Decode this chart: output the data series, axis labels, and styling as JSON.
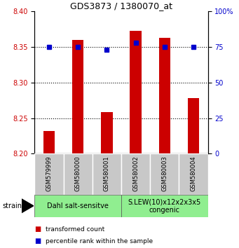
{
  "title": "GDS3873 / 1380070_at",
  "samples": [
    "GSM579999",
    "GSM580000",
    "GSM580001",
    "GSM580002",
    "GSM580003",
    "GSM580004"
  ],
  "red_values": [
    8.232,
    8.36,
    8.258,
    8.372,
    8.363,
    8.278
  ],
  "blue_values": [
    75,
    75,
    73,
    78,
    75,
    75
  ],
  "ylim_left": [
    8.2,
    8.4
  ],
  "ylim_right": [
    0,
    100
  ],
  "yticks_left": [
    8.2,
    8.25,
    8.3,
    8.35,
    8.4
  ],
  "yticks_right": [
    0,
    25,
    50,
    75,
    100
  ],
  "group1_label": "Dahl salt-sensitve",
  "group2_label": "S.LEW(10)x12x2x3x5\ncongenic",
  "group1_color": "#90EE90",
  "group2_color": "#90EE90",
  "bar_color": "#CC0000",
  "dot_color": "#0000CC",
  "tick_label_area_bg": "#C8C8C8",
  "ylabel_left_color": "#CC0000",
  "ylabel_right_color": "#0000CC",
  "legend_red_label": "transformed count",
  "legend_blue_label": "percentile rank within the sample",
  "strain_label": "strain",
  "bar_width": 0.4,
  "ybase": 8.2,
  "grid_lines": [
    8.25,
    8.3,
    8.35
  ],
  "fig_width": 3.41,
  "fig_height": 3.54
}
